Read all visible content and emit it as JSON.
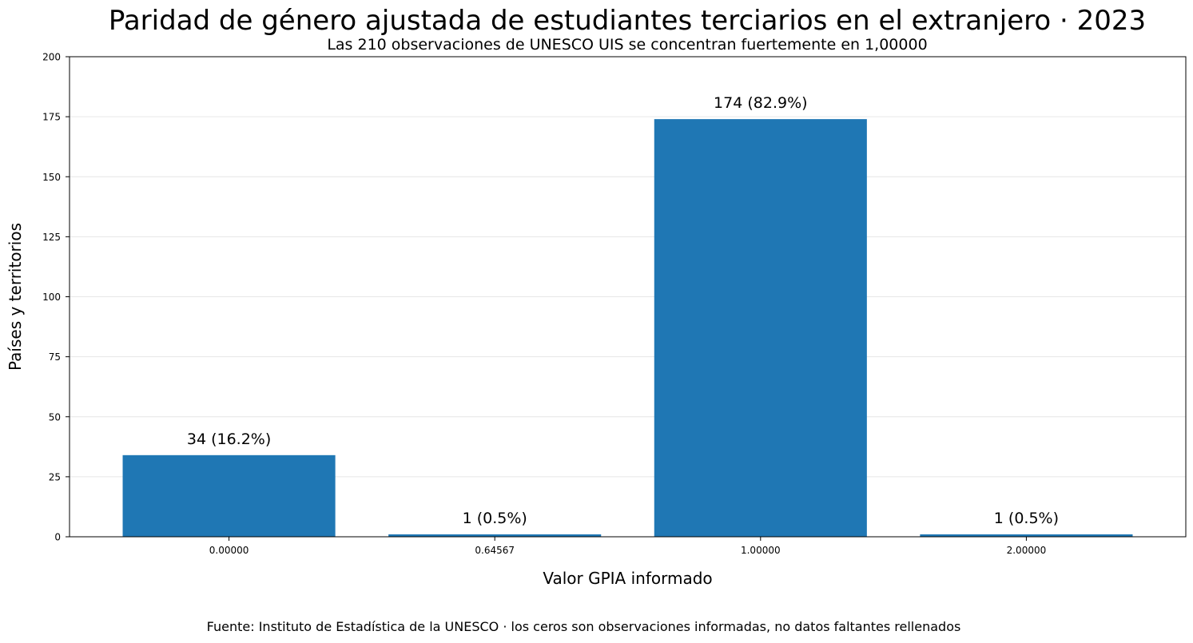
{
  "chart_data": {
    "type": "bar",
    "title": "Paridad de género ajustada de estudiantes terciarios en el extranjero · 2023",
    "subtitle": "Las 210 observaciones de UNESCO UIS se concentran fuertemente en 1,00000",
    "xlabel": "Valor GPIA informado",
    "ylabel": "Países y territorios",
    "categories": [
      "0.00000",
      "0.64567",
      "1.00000",
      "2.00000"
    ],
    "values": [
      34,
      1,
      174,
      1
    ],
    "bar_labels": [
      "34  (16.2%)",
      "1  (0.5%)",
      "174  (82.9%)",
      "1  (0.5%)"
    ],
    "ylim": [
      0,
      200
    ],
    "yticks": [
      0,
      25,
      50,
      75,
      100,
      125,
      150,
      175,
      200
    ],
    "grid": "horizontal",
    "bar_color": "#1f77b4",
    "source": "Fuente: Instituto de Estadística de la UNESCO · los ceros son observaciones informadas, no datos faltantes rellenados"
  }
}
